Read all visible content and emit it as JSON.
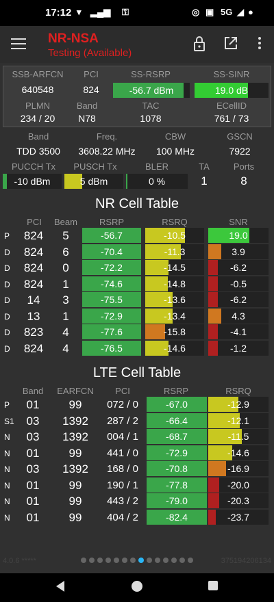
{
  "status": {
    "time": "17:12",
    "right": "5G"
  },
  "toolbar": {
    "title": "NR-NSA",
    "subtitle": "Testing (Available)"
  },
  "serving": {
    "h1": [
      "SSB-ARFCN",
      "PCI",
      "SS-RSRP",
      "SS-SINR"
    ],
    "v1": [
      "640548",
      "824",
      "-56.7 dBm",
      "19.0 dB"
    ],
    "h2": [
      "PLMN",
      "Band",
      "TAC",
      "ECellID"
    ],
    "v2": [
      "234 / 20",
      "N78",
      "1078",
      "761 / 73"
    ]
  },
  "carrier": {
    "h1": [
      "Band",
      "Freq.",
      "CBW",
      "GSCN"
    ],
    "v1": [
      "TDD 3500",
      "3608.22 MHz",
      "100 MHz",
      "7922"
    ],
    "h2": [
      "PUCCH Tx",
      "PUSCH Tx",
      "BLER",
      "TA",
      "Ports"
    ],
    "pucch": "-10 dBm",
    "pusch": "5 dBm",
    "bler": "0 %",
    "ta": "1",
    "ports": "8",
    "pucch_level": 0.07,
    "pusch_level": 0.3,
    "bler_level": 0.02
  },
  "nr": {
    "title": "NR Cell Table",
    "headers": [
      "PCI",
      "Beam",
      "RSRP",
      "RSRQ",
      "SNR"
    ],
    "rows": [
      {
        "t": "P",
        "pci": "824",
        "beam": "5",
        "rsrp": "-56.7",
        "rsrq": "-10.5",
        "snr": "19.0",
        "rq": 0.68,
        "sn": 0.68,
        "qc": "#c8c820",
        "sc": "#3cc83c"
      },
      {
        "t": "D",
        "pci": "824",
        "beam": "6",
        "rsrp": "-70.4",
        "rsrq": "-11.3",
        "snr": "3.9",
        "rq": 0.6,
        "sn": 0.22,
        "qc": "#c8c820",
        "sc": "#d07820"
      },
      {
        "t": "D",
        "pci": "824",
        "beam": "0",
        "rsrp": "-72.2",
        "rsrq": "-14.5",
        "snr": "-6.2",
        "rq": 0.4,
        "sn": 0.16,
        "qc": "#c8c820",
        "sc": "#b02020"
      },
      {
        "t": "D",
        "pci": "824",
        "beam": "1",
        "rsrp": "-74.6",
        "rsrq": "-14.8",
        "snr": "-0.5",
        "rq": 0.38,
        "sn": 0.16,
        "qc": "#c8c820",
        "sc": "#b02020"
      },
      {
        "t": "D",
        "pci": "14",
        "beam": "3",
        "rsrp": "-75.5",
        "rsrq": "-13.6",
        "snr": "-6.2",
        "rq": 0.46,
        "sn": 0.16,
        "qc": "#c8c820",
        "sc": "#b02020"
      },
      {
        "t": "D",
        "pci": "13",
        "beam": "1",
        "rsrp": "-72.9",
        "rsrq": "-13.4",
        "snr": "4.3",
        "rq": 0.46,
        "sn": 0.22,
        "qc": "#c8c820",
        "sc": "#d07820"
      },
      {
        "t": "D",
        "pci": "823",
        "beam": "4",
        "rsrp": "-77.6",
        "rsrq": "-15.8",
        "snr": "-4.1",
        "rq": 0.34,
        "sn": 0.16,
        "qc": "#d07820",
        "sc": "#b02020"
      },
      {
        "t": "D",
        "pci": "824",
        "beam": "4",
        "rsrp": "-76.5",
        "rsrq": "-14.6",
        "snr": "-1.2",
        "rq": 0.4,
        "sn": 0.16,
        "qc": "#c8c820",
        "sc": "#b02020"
      }
    ]
  },
  "lte": {
    "title": "LTE Cell Table",
    "headers": [
      "Band",
      "EARFCN",
      "PCI",
      "RSRP",
      "RSRQ"
    ],
    "rows": [
      {
        "t": "P",
        "band": "01",
        "earfcn": "99",
        "pci": "072 / 0",
        "rsrp": "-67.0",
        "rsrq": "-12.9",
        "rq": 0.5,
        "qc": "#c8c820"
      },
      {
        "t": "S1",
        "band": "03",
        "earfcn": "1392",
        "pci": "287 / 2",
        "rsrp": "-66.4",
        "rsrq": "-12.1",
        "rq": 0.52,
        "qc": "#c8c820"
      },
      {
        "t": "N",
        "band": "03",
        "earfcn": "1392",
        "pci": "004 / 1",
        "rsrp": "-68.7",
        "rsrq": "-11.5",
        "rq": 0.56,
        "qc": "#c8c820"
      },
      {
        "t": "N",
        "band": "01",
        "earfcn": "99",
        "pci": "441 / 0",
        "rsrp": "-72.9",
        "rsrq": "-14.6",
        "rq": 0.4,
        "qc": "#c8c820"
      },
      {
        "t": "N",
        "band": "03",
        "earfcn": "1392",
        "pci": "168 / 0",
        "rsrp": "-70.8",
        "rsrq": "-16.9",
        "rq": 0.3,
        "qc": "#d07820"
      },
      {
        "t": "N",
        "band": "01",
        "earfcn": "99",
        "pci": "190 / 1",
        "rsrp": "-77.8",
        "rsrq": "-20.0",
        "rq": 0.18,
        "qc": "#b02020"
      },
      {
        "t": "N",
        "band": "01",
        "earfcn": "99",
        "pci": "443 / 2",
        "rsrp": "-79.0",
        "rsrq": "-20.3",
        "rq": 0.18,
        "qc": "#b02020"
      },
      {
        "t": "N",
        "band": "01",
        "earfcn": "99",
        "pci": "404 / 2",
        "rsrp": "-82.4",
        "rsrq": "-23.7",
        "rq": 0.12,
        "qc": "#b02020"
      }
    ]
  },
  "footer": {
    "left": "4.0.6 *****",
    "right": "375194206134"
  }
}
